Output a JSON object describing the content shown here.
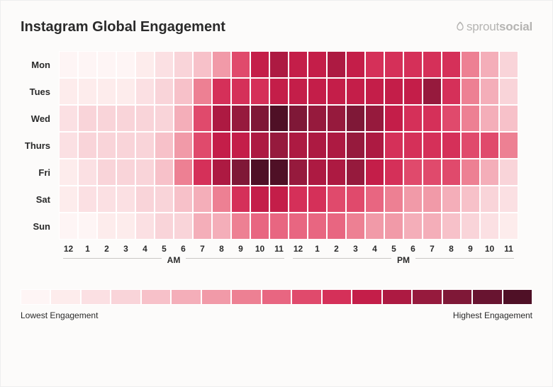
{
  "title": "Instagram Global Engagement",
  "brand": "sproutsocial",
  "heatmap": {
    "type": "heatmap",
    "background_color": "#fcfbfa",
    "cell_border_color": "#ffffff",
    "text_color": "#2a2a2a",
    "days": [
      "Mon",
      "Tues",
      "Wed",
      "Thurs",
      "Fri",
      "Sat",
      "Sun"
    ],
    "hours": [
      "12",
      "1",
      "2",
      "3",
      "4",
      "5",
      "6",
      "7",
      "8",
      "9",
      "10",
      "11",
      "12",
      "1",
      "2",
      "3",
      "4",
      "5",
      "6",
      "7",
      "8",
      "9",
      "10",
      "11"
    ],
    "periods": [
      "AM",
      "PM"
    ],
    "color_scale": [
      "#fef5f5",
      "#fdecec",
      "#fbe0e3",
      "#f9d4d9",
      "#f7c1c9",
      "#f4aeb9",
      "#f19aa8",
      "#ed8093",
      "#e86681",
      "#e04a6c",
      "#d53059",
      "#c41e49",
      "#ad1a42",
      "#961a3d",
      "#7f1837",
      "#681430",
      "#4f1026"
    ],
    "values": [
      [
        0,
        0,
        0,
        0,
        1,
        2,
        3,
        4,
        6,
        9,
        11,
        12,
        11,
        11,
        12,
        11,
        10,
        10,
        10,
        10,
        10,
        7,
        5,
        3
      ],
      [
        1,
        1,
        1,
        1,
        2,
        3,
        4,
        7,
        10,
        10,
        10,
        11,
        11,
        11,
        11,
        11,
        11,
        11,
        11,
        13,
        10,
        7,
        5,
        3
      ],
      [
        2,
        3,
        3,
        3,
        3,
        3,
        5,
        9,
        12,
        13,
        14,
        16,
        14,
        13,
        13,
        14,
        13,
        11,
        10,
        10,
        9,
        7,
        5,
        4
      ],
      [
        2,
        3,
        3,
        3,
        3,
        4,
        6,
        9,
        11,
        11,
        12,
        13,
        12,
        12,
        12,
        13,
        12,
        10,
        10,
        10,
        10,
        9,
        9,
        7
      ],
      [
        1,
        2,
        3,
        3,
        3,
        4,
        7,
        10,
        12,
        14,
        16,
        16,
        13,
        12,
        12,
        13,
        11,
        10,
        9,
        9,
        9,
        7,
        5,
        3
      ],
      [
        1,
        2,
        2,
        2,
        3,
        3,
        4,
        5,
        7,
        10,
        11,
        11,
        10,
        10,
        9,
        9,
        8,
        7,
        6,
        6,
        5,
        4,
        3,
        2
      ],
      [
        0,
        0,
        1,
        1,
        2,
        3,
        3,
        5,
        5,
        7,
        8,
        8,
        8,
        8,
        8,
        7,
        6,
        6,
        5,
        5,
        4,
        3,
        2,
        1
      ]
    ]
  },
  "legend": {
    "low_label": "Lowest Engagement",
    "high_label": "Highest Engagement"
  }
}
